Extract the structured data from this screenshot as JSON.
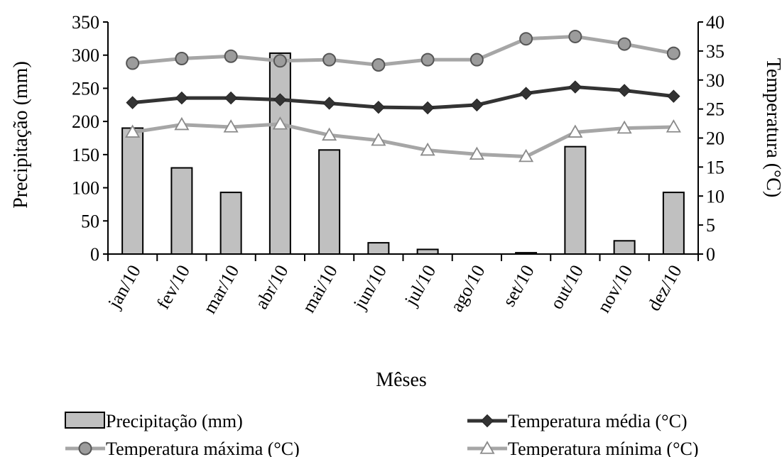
{
  "chart_data": {
    "type": "bar+line",
    "categories": [
      "jan/10",
      "fev/10",
      "mar/10",
      "abr/10",
      "mai/10",
      "jun/10",
      "jul/10",
      "ago/10",
      "set/10",
      "out/10",
      "nov/10",
      "dez/10"
    ],
    "xlabel": "Mêses",
    "ylabel_left": "Precipitação (mm)",
    "ylabel_right": "Temperatura (°C)",
    "ylim_left": [
      0,
      350
    ],
    "ylim_right": [
      0,
      40
    ],
    "yticks_left": [
      "0",
      "50",
      "100",
      "150",
      "200",
      "250",
      "300",
      "350"
    ],
    "yticks_right": [
      "0",
      "5",
      "10",
      "15",
      "20",
      "25",
      "30",
      "35",
      "40"
    ],
    "grid": false,
    "legend_position": "bottom",
    "series": [
      {
        "name": "Precipitação (mm)",
        "kind": "bar",
        "axis": "left",
        "color": "#c0c0c0",
        "values": [
          190,
          130,
          93,
          303,
          157,
          17,
          7,
          0,
          2,
          162,
          20,
          93
        ]
      },
      {
        "name": "Temperatura média (°C)",
        "kind": "line",
        "marker": "diamond",
        "axis": "right",
        "color": "#333333",
        "values": [
          26.1,
          26.9,
          26.9,
          26.6,
          26.0,
          25.3,
          25.2,
          25.7,
          27.7,
          28.8,
          28.2,
          27.2
        ]
      },
      {
        "name": "Temperatura máxima (°C)",
        "kind": "line",
        "marker": "circle",
        "axis": "right",
        "color": "#a6a6a6",
        "values": [
          32.9,
          33.7,
          34.1,
          33.3,
          33.5,
          32.6,
          33.5,
          33.5,
          37.1,
          37.5,
          36.2,
          34.6
        ]
      },
      {
        "name": "Temperatura mínima (°C)",
        "kind": "line",
        "marker": "triangle",
        "axis": "right",
        "color": "#a6a6a6",
        "values": [
          21.0,
          22.3,
          21.9,
          22.4,
          20.5,
          19.6,
          17.9,
          17.2,
          16.8,
          21.0,
          21.7,
          21.9
        ]
      }
    ]
  }
}
